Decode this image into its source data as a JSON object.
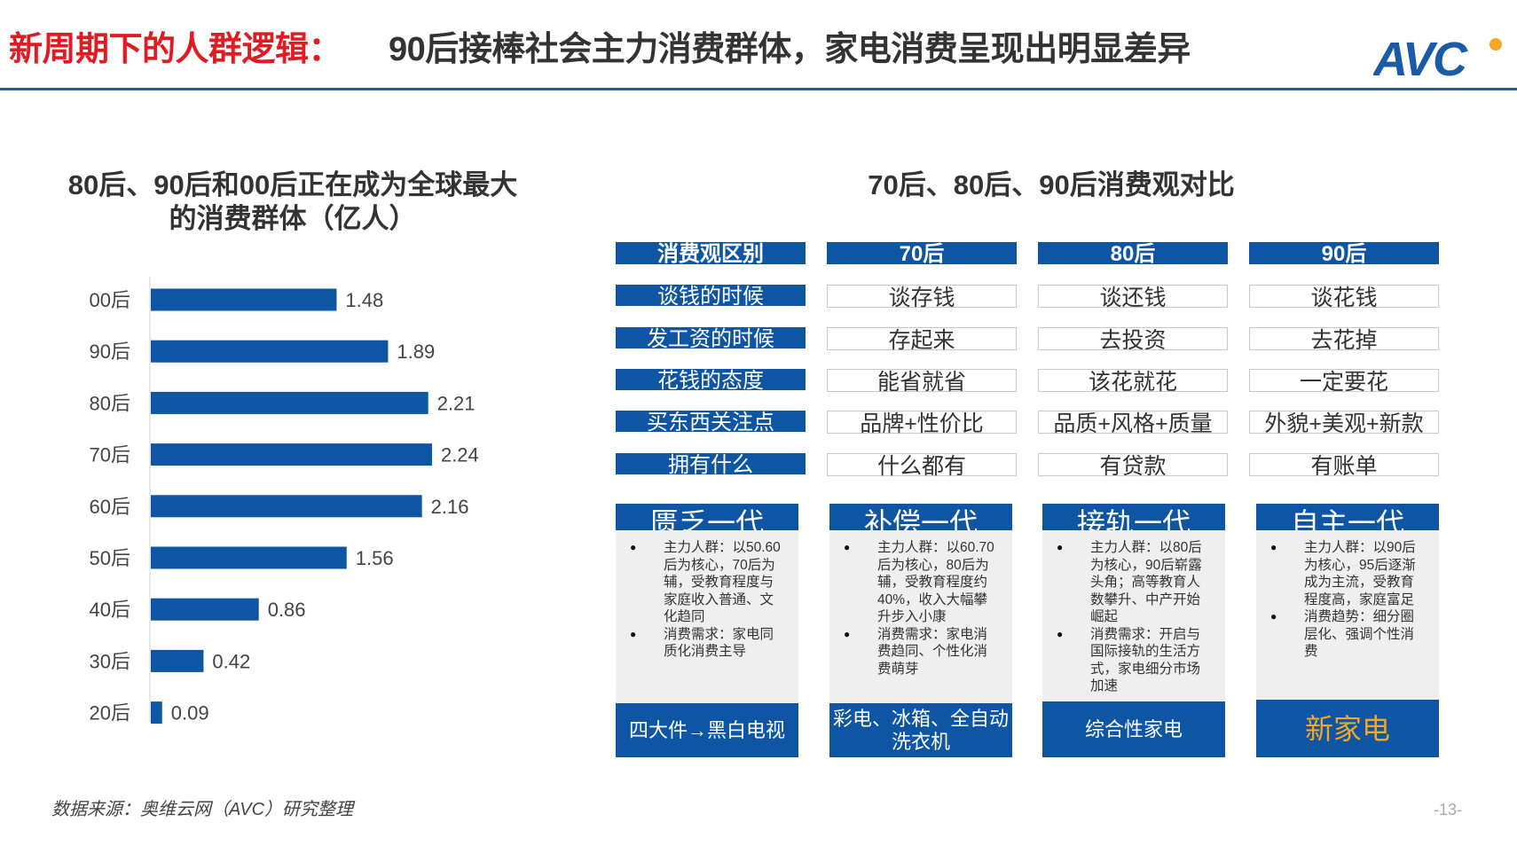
{
  "header": {
    "title_red": "新周期下的人群逻辑：",
    "title_dark": "90后接棒社会主力消费群体，家电消费呈现出明显差异",
    "logo_text": "AVC",
    "accent": "#1a5aa6",
    "red": "#e01b22"
  },
  "left": {
    "title_line1": "80后、90后和00后正在成为全球最大",
    "title_line2": "的消费群体（亿人）"
  },
  "chart_data": {
    "type": "bar",
    "orientation": "horizontal",
    "title": "80后、90后和00后正在成为全球最大的消费群体（亿人）",
    "categories": [
      "00后",
      "90后",
      "80后",
      "70后",
      "60后",
      "50后",
      "40后",
      "30后",
      "20后"
    ],
    "values": [
      1.48,
      1.89,
      2.21,
      2.24,
      2.16,
      1.56,
      0.86,
      0.42,
      0.09
    ],
    "value_labels": [
      "1.48",
      "1.89",
      "2.21",
      "2.24",
      "2.16",
      "1.56",
      "0.86",
      "0.42",
      "0.09"
    ],
    "xlabel": "",
    "ylabel": "",
    "xlim": [
      0,
      2.5
    ],
    "grid": false,
    "color": "#0e56a3"
  },
  "right": {
    "title": "70后、80后、90后消费观对比",
    "headers": [
      "消费观区别",
      "70后",
      "80后",
      "90后"
    ],
    "rows": [
      {
        "label": "谈钱的时候",
        "values": [
          "谈存钱",
          "谈还钱",
          "谈花钱"
        ]
      },
      {
        "label": "发工资的时候",
        "values": [
          "存起来",
          "去投资",
          "去花掉"
        ]
      },
      {
        "label": "花钱的态度",
        "values": [
          "能省就省",
          "该花就花",
          "一定要花"
        ]
      },
      {
        "label": "买东西关注点",
        "values": [
          "品牌+性价比",
          "品质+风格+质量",
          "外貌+美观+新款"
        ]
      },
      {
        "label": "拥有什么",
        "values": [
          "什么都有",
          "有贷款",
          "有账单"
        ]
      }
    ],
    "cards": [
      {
        "title": "匮乏一代",
        "bullets": [
          "主力人群：以50.60后为核心，70后为辅，受教育程度与家庭收入普通、文化趋同",
          "消费需求：家电同质化消费主导"
        ],
        "footer": "四大件→黑白电视",
        "footer_color": "#ffffff"
      },
      {
        "title": "补偿一代",
        "bullets": [
          "主力人群：以60.70后为核心，80后为辅，受教育程度约40%，收入大幅攀升步入小康",
          "消费需求：家电消费趋同、个性化消费萌芽"
        ],
        "footer": "彩电、冰箱、全自动洗衣机",
        "footer_color": "#ffffff"
      },
      {
        "title": "接轨一代",
        "bullets": [
          "主力人群：以80后为核心，90后崭露头角；高等教育人数攀升、中产开始崛起",
          "消费需求：开启与国际接轨的生活方式，家电细分市场加速"
        ],
        "footer": "综合性家电",
        "footer_color": "#ffffff"
      },
      {
        "title": "自主一代",
        "bullets": [
          "主力人群：以90后为核心，95后逐渐成为主流，受教育程度高，家庭富足",
          "消费趋势：细分圈层化、强调个性消费"
        ],
        "footer": "新家电",
        "footer_color": "#f5a623"
      }
    ]
  },
  "footer": {
    "source": "数据来源：奥维云网（AVC）研究整理",
    "page_number": "-13-"
  }
}
